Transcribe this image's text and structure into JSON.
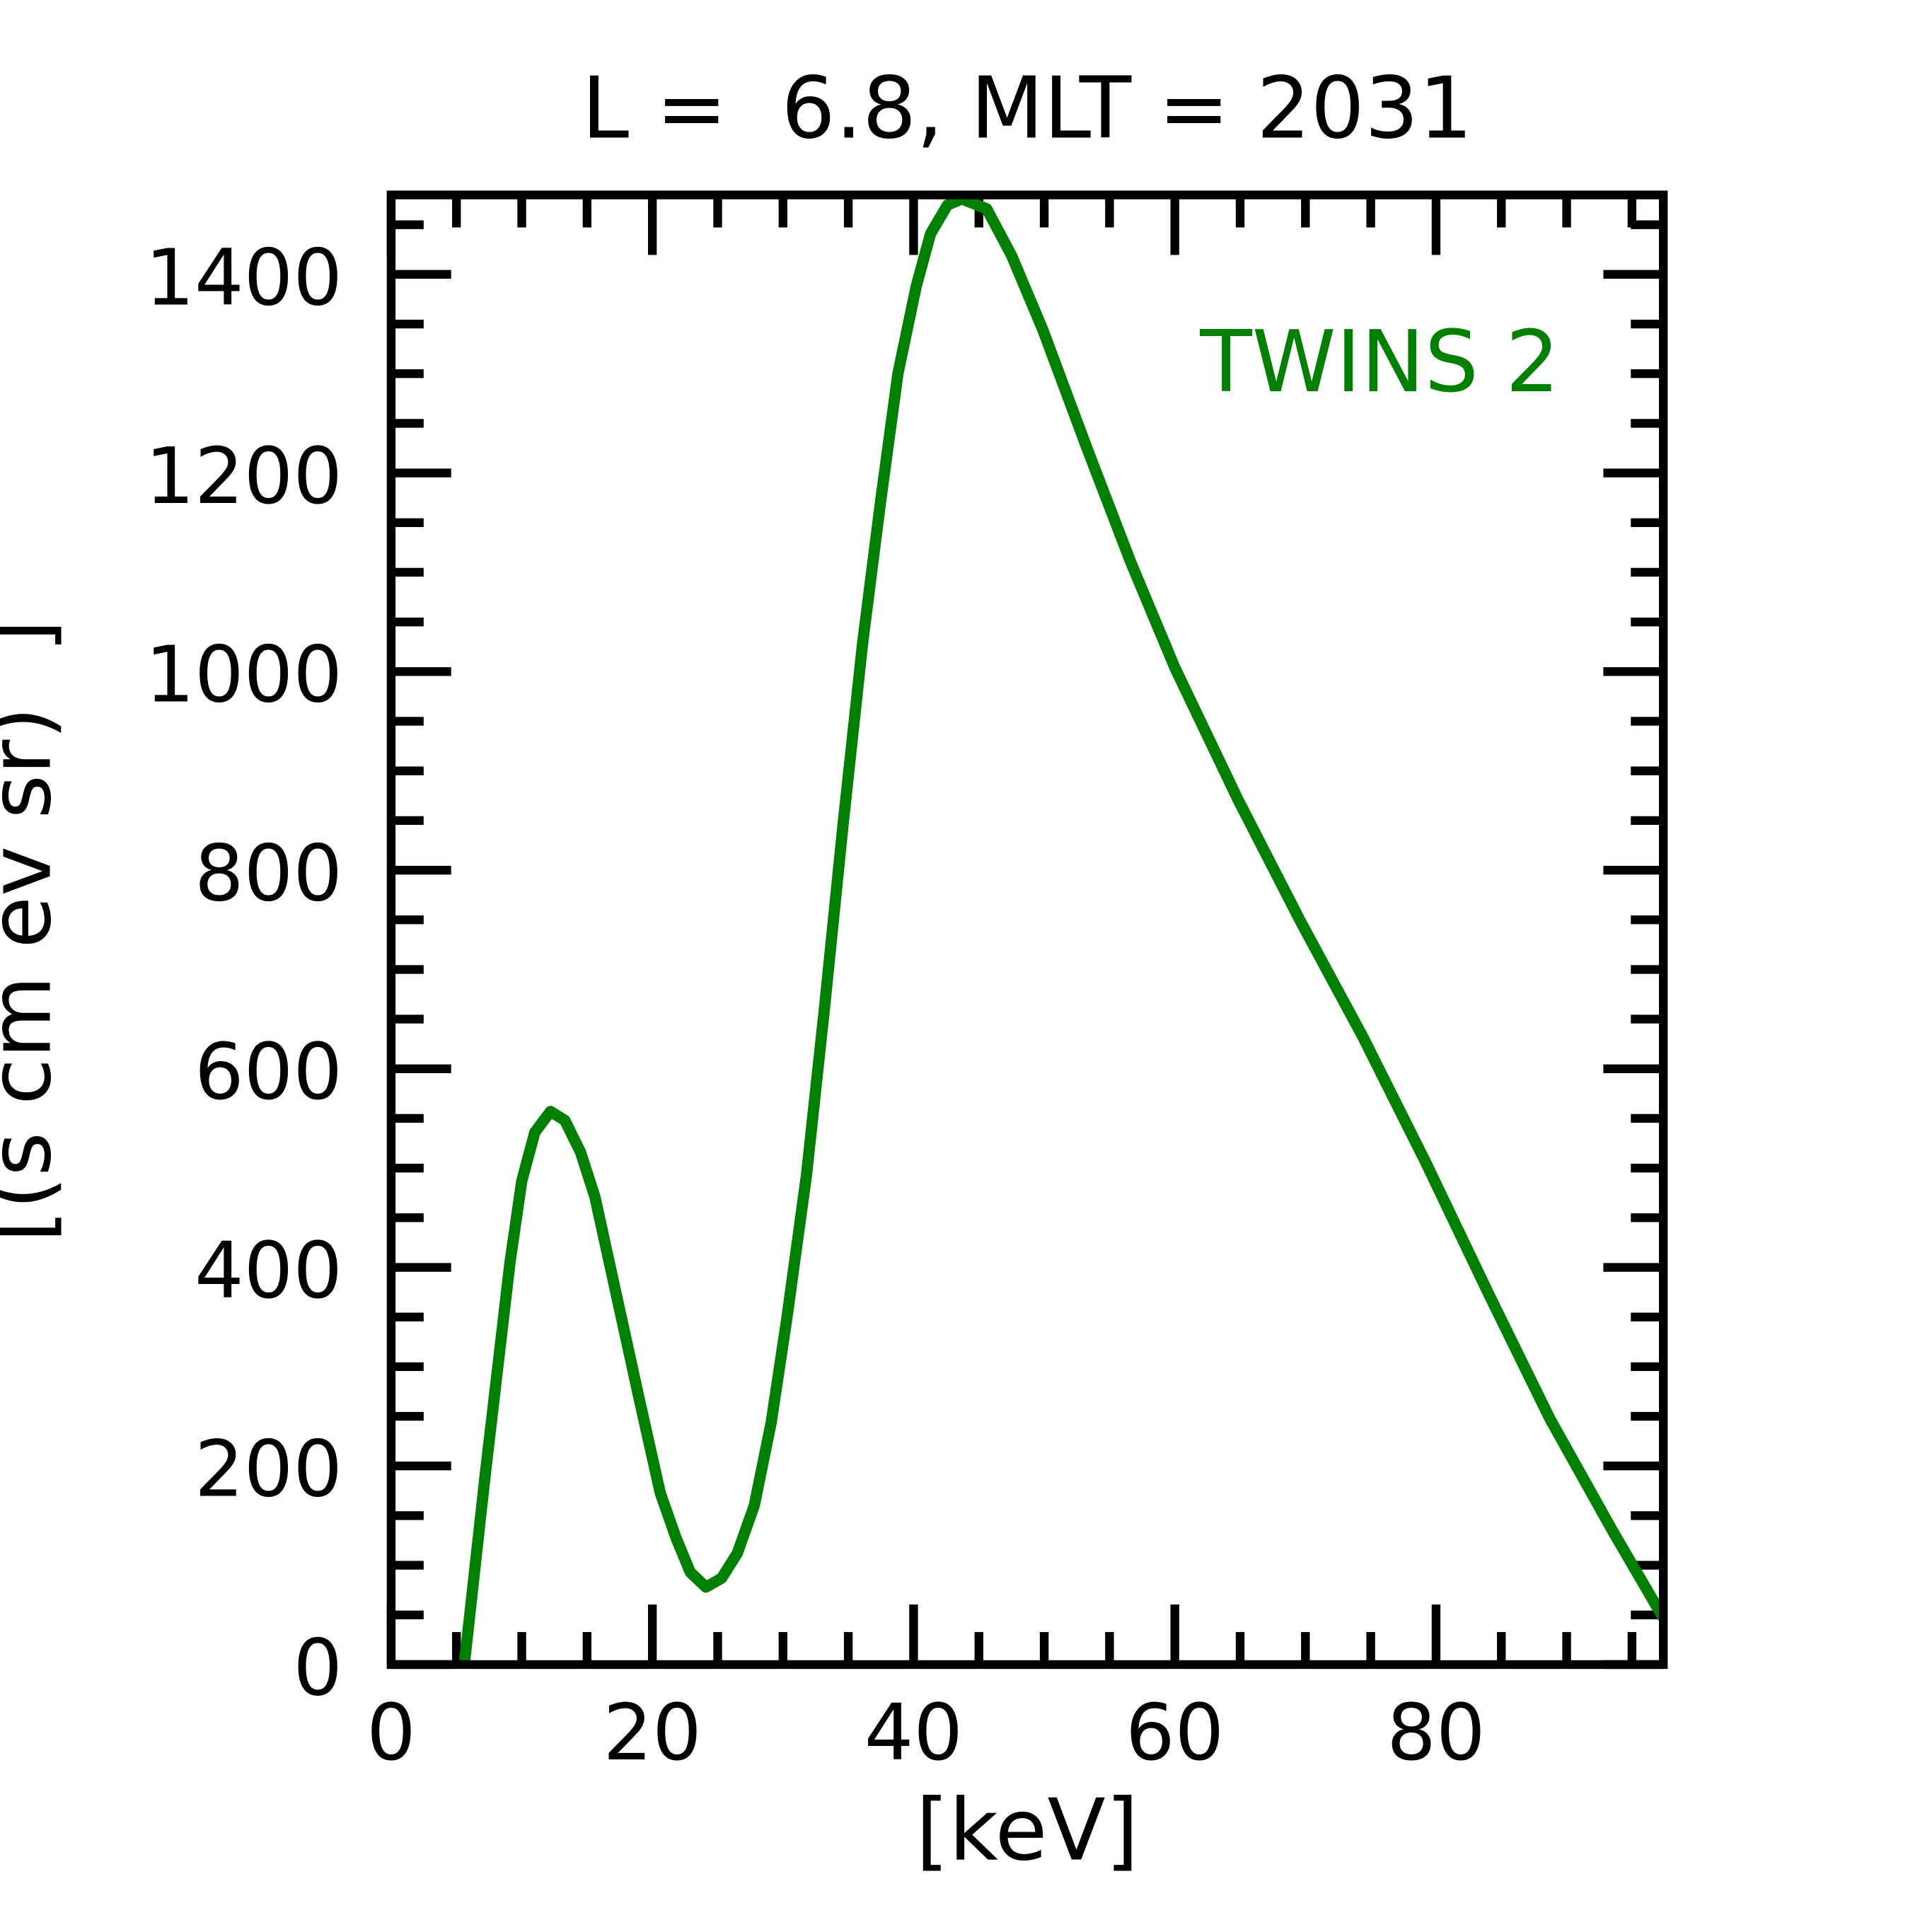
{
  "chart_data": {
    "type": "line",
    "title": "L =  6.8, MLT = 2031",
    "xlabel": "[keV]",
    "ylabel": "[(s cm ev sr)  ]",
    "xlim": [
      0,
      97.4
    ],
    "ylim": [
      0,
      1480
    ],
    "xticks": [
      0,
      20,
      40,
      60,
      80
    ],
    "xtick_labels": [
      "0",
      "20",
      "40",
      "60",
      "80"
    ],
    "yticks": [
      0,
      200,
      400,
      600,
      800,
      1000,
      1200,
      1400
    ],
    "ytick_labels": [
      "0",
      "200",
      "400",
      "600",
      "800",
      "1000",
      "1200",
      "1400"
    ],
    "grid": false,
    "annotation": {
      "text": "TWINS 2",
      "placement": "top-right",
      "color": "#008000"
    },
    "series": [
      {
        "name": "TWINS 2",
        "color": "#008000",
        "x": [
          5.6,
          7.2,
          9.1,
          10.0,
          11.0,
          12.2,
          13.3,
          14.5,
          15.6,
          16.9,
          18.9,
          20.6,
          21.8,
          22.9,
          24.1,
          25.3,
          26.5,
          27.8,
          29.1,
          30.3,
          31.8,
          33.2,
          34.6,
          36.1,
          37.5,
          38.8,
          40.2,
          41.3,
          42.6,
          43.7,
          45.6,
          47.5,
          49.9,
          53.3,
          56.6,
          60.0,
          64.8,
          69.6,
          74.4,
          79.2,
          84.0,
          88.7,
          93.5,
          97.4
        ],
        "y": [
          0,
          191,
          405,
          487,
          536,
          557,
          548,
          516,
          471,
          393,
          273,
          173,
          128,
          93,
          78,
          87,
          112,
          160,
          244,
          349,
          493,
          664,
          846,
          1029,
          1174,
          1300,
          1388,
          1441,
          1470,
          1476,
          1466,
          1419,
          1344,
          1224,
          1111,
          1004,
          872,
          749,
          632,
          506,
          374,
          248,
          135,
          47
        ]
      }
    ]
  }
}
